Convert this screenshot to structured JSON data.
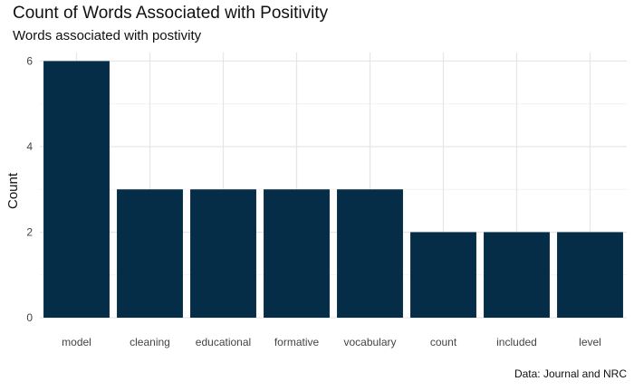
{
  "chart_data": {
    "type": "bar",
    "title": "Count of Words Associated with Positivity",
    "subtitle": "Words associated with postivity",
    "caption": "Data: Journal and NRC",
    "xlabel": "",
    "ylabel": "Count",
    "categories": [
      "model",
      "cleaning",
      "educational",
      "formative",
      "vocabulary",
      "count",
      "included",
      "level"
    ],
    "values": [
      6,
      3,
      3,
      3,
      3,
      2,
      2,
      2
    ],
    "ylim": [
      0,
      6.2
    ],
    "yticks": [
      0,
      2,
      4,
      6
    ],
    "grid": true,
    "legend": "none",
    "colors": {
      "bar": "#052d47",
      "grid_major": "#e6e6e6",
      "grid_minor": "#f2f2f2"
    }
  }
}
